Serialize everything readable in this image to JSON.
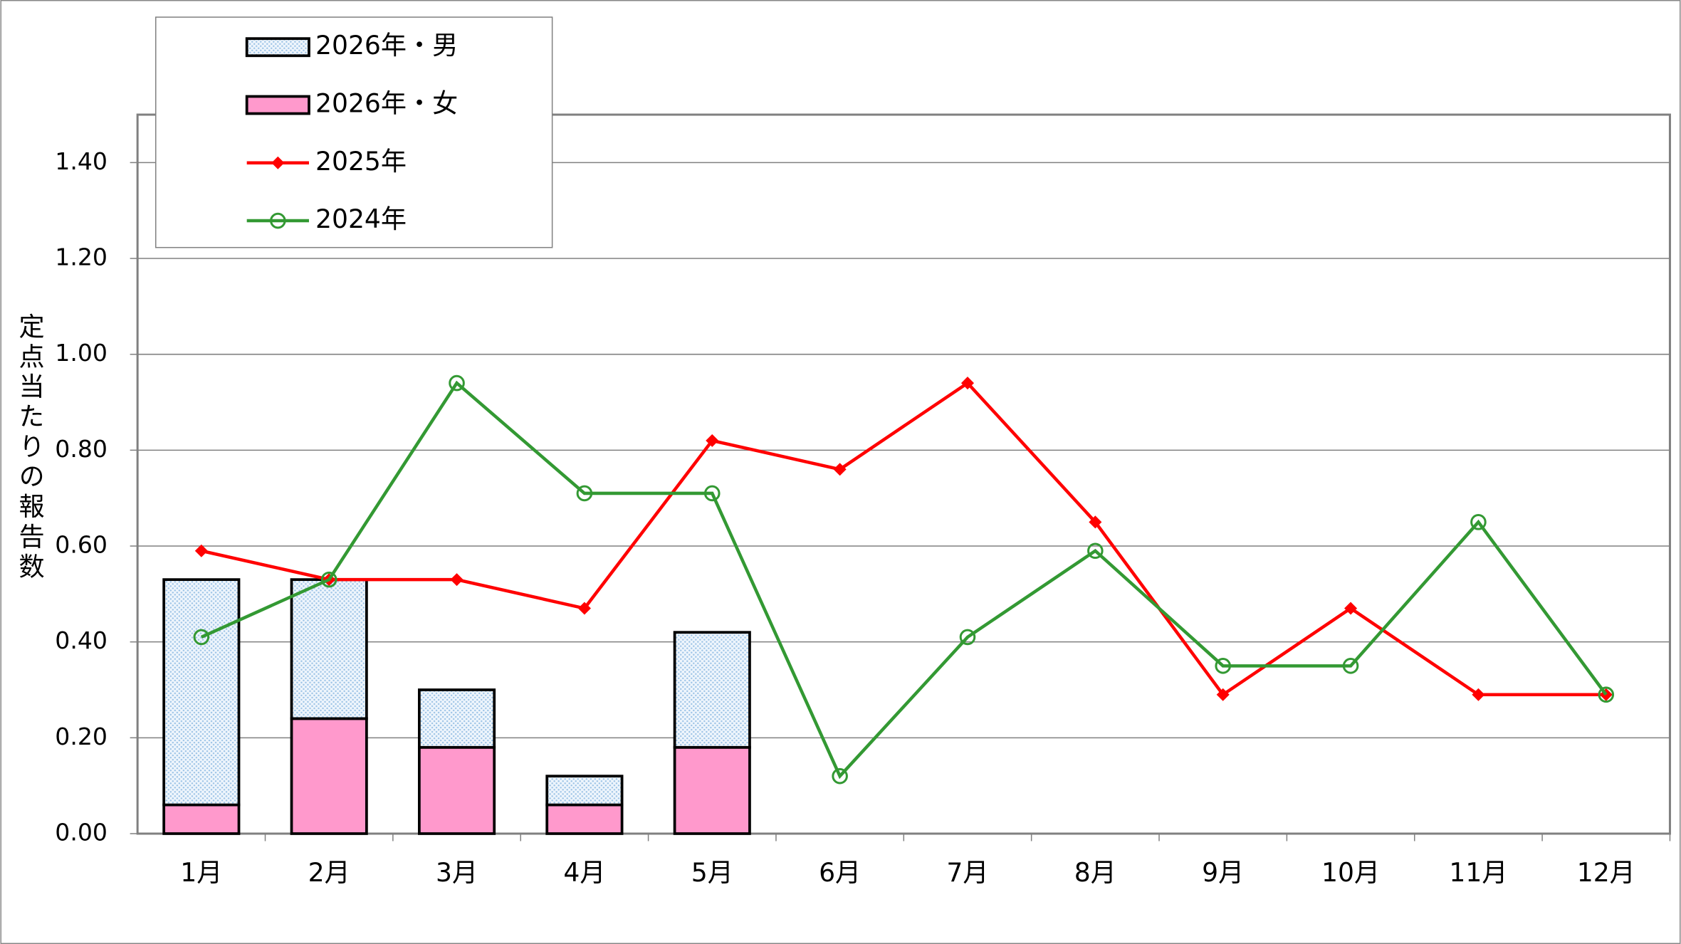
{
  "chart_data": {
    "type": "combo",
    "y_label": "定点当たりの報告数",
    "categories": [
      "1月",
      "2月",
      "3月",
      "4月",
      "5月",
      "6月",
      "7月",
      "8月",
      "9月",
      "10月",
      "11月",
      "12月"
    ],
    "ylim": [
      0,
      1.5
    ],
    "yticks": [
      {
        "value": 0,
        "label": "0.00"
      },
      {
        "value": 0.2,
        "label": "0.20"
      },
      {
        "value": 0.4,
        "label": "0.40"
      },
      {
        "value": 0.6,
        "label": "0.60"
      },
      {
        "value": 0.8,
        "label": "0.80"
      },
      {
        "value": 1,
        "label": "1.00"
      },
      {
        "value": 1.2,
        "label": "1.20"
      },
      {
        "value": 1.4,
        "label": "1.40"
      }
    ],
    "grid": true,
    "series": [
      {
        "name": "2026年・女",
        "type": "bar",
        "color": "#ff99cc",
        "values": [
          0.06,
          0.24,
          0.18,
          0.06,
          0.18,
          null,
          null,
          null,
          null,
          null,
          null,
          null
        ]
      },
      {
        "name": "2026年・男",
        "type": "bar",
        "color": "#dbe9f7",
        "values": [
          0.47,
          0.29,
          0.12,
          0.06,
          0.24,
          null,
          null,
          null,
          null,
          null,
          null,
          null
        ]
      },
      {
        "name": "2025年",
        "type": "line",
        "marker": "diamond",
        "color": "#ff0000",
        "values": [
          0.59,
          0.53,
          0.53,
          0.47,
          0.82,
          0.76,
          0.94,
          0.65,
          0.29,
          0.47,
          0.29,
          0.29
        ]
      },
      {
        "name": "2024年",
        "type": "line",
        "marker": "circle",
        "color": "#339933",
        "values": [
          0.41,
          0.53,
          0.94,
          0.71,
          0.71,
          0.12,
          0.41,
          0.59,
          0.35,
          0.35,
          0.65,
          0.29
        ]
      }
    ],
    "legend_order": [
      1,
      0,
      2,
      3
    ]
  }
}
